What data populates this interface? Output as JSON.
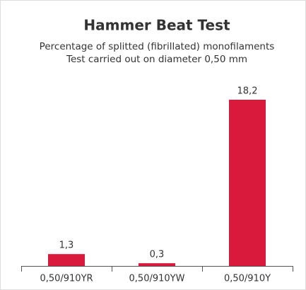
{
  "chart_data": {
    "type": "bar",
    "title": "Hammer Beat Test",
    "subtitle": [
      "Percentage of splitted (fibrillated) monofilaments",
      "Test carried out on diameter 0,50 mm"
    ],
    "categories": [
      "0,50/910YR",
      "0,50/910YW",
      "0,50/910Y"
    ],
    "values": [
      1.3,
      0.3,
      18.2
    ],
    "value_labels": [
      "1,3",
      "0,3",
      "18,2"
    ],
    "color": "#d91a3c"
  }
}
